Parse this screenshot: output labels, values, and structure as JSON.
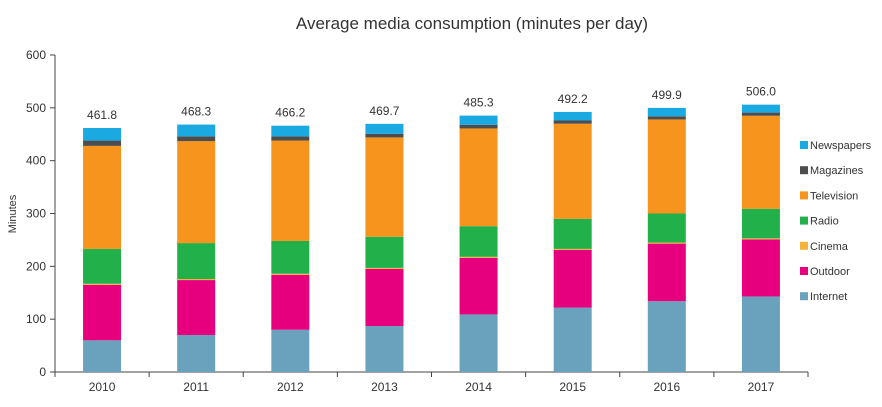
{
  "chart_data": {
    "type": "bar",
    "stacked": true,
    "title": "Average media consumption (minutes per day)",
    "xlabel": "",
    "ylabel": "Minutes",
    "ylim": [
      0,
      600
    ],
    "yticks": [
      0,
      100,
      200,
      300,
      400,
      500,
      600
    ],
    "grid": false,
    "legend_position": "right",
    "categories": [
      "2010",
      "2011",
      "2012",
      "2013",
      "2014",
      "2015",
      "2016",
      "2017"
    ],
    "totals": [
      "461.8",
      "468.3",
      "466.2",
      "469.7",
      "485.3",
      "492.2",
      "499.9",
      "506.0"
    ],
    "series": [
      {
        "name": "Internet",
        "color": "#6aa2bd",
        "values": [
          60,
          70,
          80,
          87,
          109,
          122,
          134,
          143
        ]
      },
      {
        "name": "Outdoor",
        "color": "#e6007e",
        "values": [
          105,
          104,
          104,
          108,
          107,
          109,
          109,
          108
        ]
      },
      {
        "name": "Cinema",
        "color": "#f6b33a",
        "values": [
          2,
          2,
          2,
          2,
          2,
          2,
          2,
          2
        ]
      },
      {
        "name": "Radio",
        "color": "#22b04b",
        "values": [
          66,
          68,
          62,
          59,
          58,
          57,
          55,
          56
        ]
      },
      {
        "name": "Television",
        "color": "#f7941d",
        "values": [
          195,
          193,
          190,
          188,
          185,
          180,
          178,
          176
        ]
      },
      {
        "name": "Magazines",
        "color": "#4d4d4d",
        "values": [
          10,
          9,
          8,
          7,
          7,
          6,
          6,
          6
        ]
      },
      {
        "name": "Newspapers",
        "color": "#1ba9e1",
        "values": [
          23.8,
          22.3,
          20.2,
          18.7,
          17.3,
          16.2,
          15.9,
          15.0
        ]
      }
    ],
    "legend_order": [
      "Newspapers",
      "Magazines",
      "Television",
      "Radio",
      "Cinema",
      "Outdoor",
      "Internet"
    ]
  }
}
